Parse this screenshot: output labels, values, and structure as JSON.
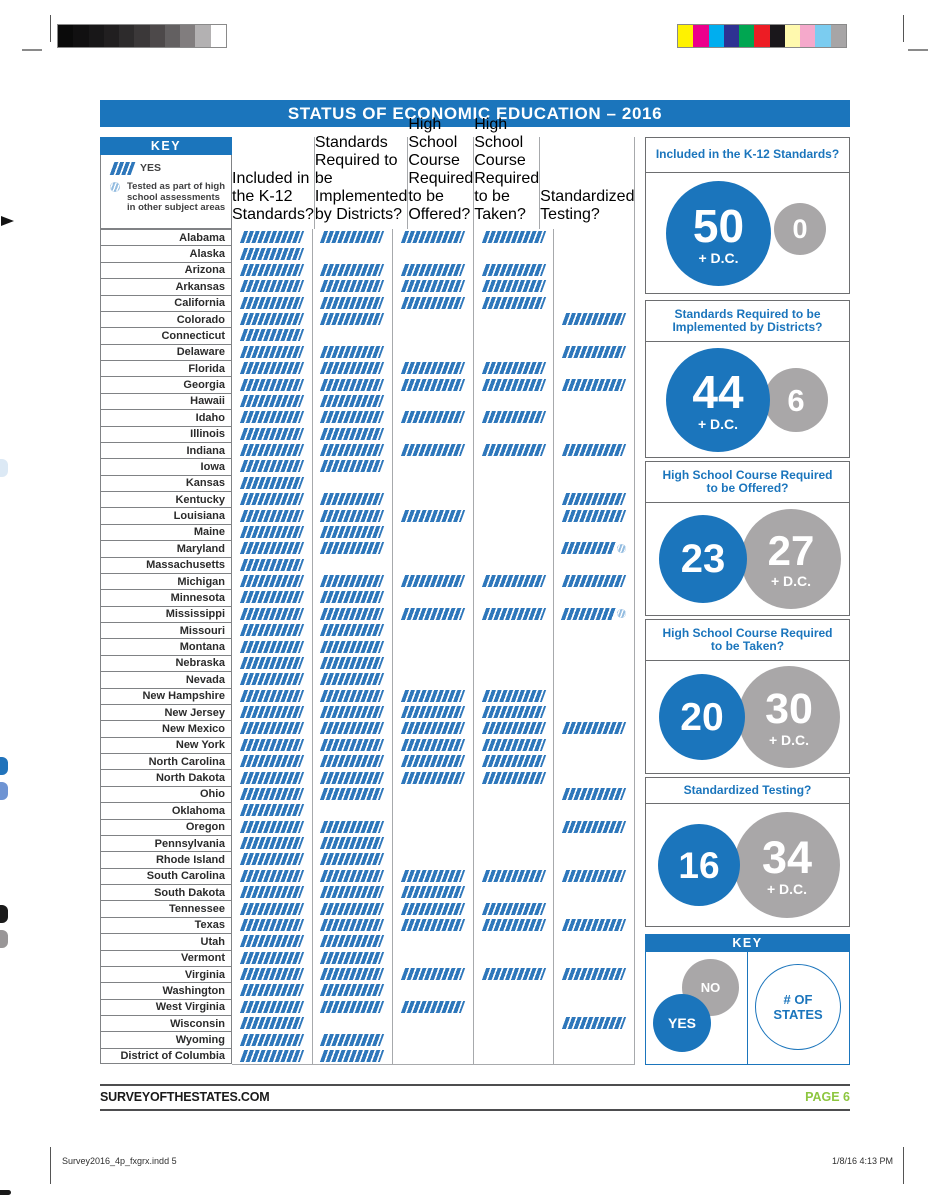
{
  "title": "STATUS OF ECONOMIC EDUCATION – 2016",
  "key": {
    "header": "KEY",
    "yes_label": "YES",
    "tested_note": "Tested as part of high\nschool assessments\nin other subject areas"
  },
  "columns": [
    {
      "id": "k12-standards",
      "label": "Included\nin the K-12\nStandards?"
    },
    {
      "id": "standards-implemented",
      "label": "Standards\nRequired to be\nImplemented\nby Districts?"
    },
    {
      "id": "course-offered",
      "label": "High School\nCourse\nRequired to\nbe Offered?"
    },
    {
      "id": "course-taken",
      "label": "High School\nCourse\nRequired to\nbe Taken?"
    },
    {
      "id": "standardized-testing",
      "label": "Standardized\nTesting?"
    }
  ],
  "table": {
    "rows": [
      {
        "state": "Alabama",
        "marks": [
          1,
          1,
          1,
          1,
          0
        ],
        "note": false
      },
      {
        "state": "Alaska",
        "marks": [
          1,
          0,
          0,
          0,
          0
        ],
        "note": false
      },
      {
        "state": "Arizona",
        "marks": [
          1,
          1,
          1,
          1,
          0
        ],
        "note": false
      },
      {
        "state": "Arkansas",
        "marks": [
          1,
          1,
          1,
          1,
          0
        ],
        "note": false
      },
      {
        "state": "California",
        "marks": [
          1,
          1,
          1,
          1,
          0
        ],
        "note": false
      },
      {
        "state": "Colorado",
        "marks": [
          1,
          1,
          0,
          0,
          1
        ],
        "note": false
      },
      {
        "state": "Connecticut",
        "marks": [
          1,
          0,
          0,
          0,
          0
        ],
        "note": false
      },
      {
        "state": "Delaware",
        "marks": [
          1,
          1,
          0,
          0,
          1
        ],
        "note": false
      },
      {
        "state": "Florida",
        "marks": [
          1,
          1,
          1,
          1,
          0
        ],
        "note": false
      },
      {
        "state": "Georgia",
        "marks": [
          1,
          1,
          1,
          1,
          1
        ],
        "note": false
      },
      {
        "state": "Hawaii",
        "marks": [
          1,
          1,
          0,
          0,
          0
        ],
        "note": false
      },
      {
        "state": "Idaho",
        "marks": [
          1,
          1,
          1,
          1,
          0
        ],
        "note": false
      },
      {
        "state": "Illinois",
        "marks": [
          1,
          1,
          0,
          0,
          0
        ],
        "note": false
      },
      {
        "state": "Indiana",
        "marks": [
          1,
          1,
          1,
          1,
          1
        ],
        "note": false
      },
      {
        "state": "Iowa",
        "marks": [
          1,
          1,
          0,
          0,
          0
        ],
        "note": false
      },
      {
        "state": "Kansas",
        "marks": [
          1,
          0,
          0,
          0,
          0
        ],
        "note": false
      },
      {
        "state": "Kentucky",
        "marks": [
          1,
          1,
          0,
          0,
          1
        ],
        "note": false
      },
      {
        "state": "Louisiana",
        "marks": [
          1,
          1,
          1,
          0,
          1
        ],
        "note": false
      },
      {
        "state": "Maine",
        "marks": [
          1,
          1,
          0,
          0,
          0
        ],
        "note": false
      },
      {
        "state": "Maryland",
        "marks": [
          1,
          1,
          0,
          0,
          1
        ],
        "note": true
      },
      {
        "state": "Massachusetts",
        "marks": [
          1,
          0,
          0,
          0,
          0
        ],
        "note": false
      },
      {
        "state": "Michigan",
        "marks": [
          1,
          1,
          1,
          1,
          1
        ],
        "note": false
      },
      {
        "state": "Minnesota",
        "marks": [
          1,
          1,
          0,
          0,
          0
        ],
        "note": false
      },
      {
        "state": "Mississippi",
        "marks": [
          1,
          1,
          1,
          1,
          1
        ],
        "note": true
      },
      {
        "state": "Missouri",
        "marks": [
          1,
          1,
          0,
          0,
          0
        ],
        "note": false
      },
      {
        "state": "Montana",
        "marks": [
          1,
          1,
          0,
          0,
          0
        ],
        "note": false
      },
      {
        "state": "Nebraska",
        "marks": [
          1,
          1,
          0,
          0,
          0
        ],
        "note": false
      },
      {
        "state": "Nevada",
        "marks": [
          1,
          1,
          0,
          0,
          0
        ],
        "note": false
      },
      {
        "state": "New Hampshire",
        "marks": [
          1,
          1,
          1,
          1,
          0
        ],
        "note": false
      },
      {
        "state": "New Jersey",
        "marks": [
          1,
          1,
          1,
          1,
          0
        ],
        "note": false
      },
      {
        "state": "New Mexico",
        "marks": [
          1,
          1,
          1,
          1,
          1
        ],
        "note": false
      },
      {
        "state": "New York",
        "marks": [
          1,
          1,
          1,
          1,
          0
        ],
        "note": false
      },
      {
        "state": "North Carolina",
        "marks": [
          1,
          1,
          1,
          1,
          0
        ],
        "note": false
      },
      {
        "state": "North Dakota",
        "marks": [
          1,
          1,
          1,
          1,
          0
        ],
        "note": false
      },
      {
        "state": "Ohio",
        "marks": [
          1,
          1,
          0,
          0,
          1
        ],
        "note": false
      },
      {
        "state": "Oklahoma",
        "marks": [
          1,
          0,
          0,
          0,
          0
        ],
        "note": false
      },
      {
        "state": "Oregon",
        "marks": [
          1,
          1,
          0,
          0,
          1
        ],
        "note": false
      },
      {
        "state": "Pennsylvania",
        "marks": [
          1,
          1,
          0,
          0,
          0
        ],
        "note": false
      },
      {
        "state": "Rhode Island",
        "marks": [
          1,
          1,
          0,
          0,
          0
        ],
        "note": false
      },
      {
        "state": "South Carolina",
        "marks": [
          1,
          1,
          1,
          1,
          1
        ],
        "note": false
      },
      {
        "state": "South Dakota",
        "marks": [
          1,
          1,
          1,
          0,
          0
        ],
        "note": false
      },
      {
        "state": "Tennessee",
        "marks": [
          1,
          1,
          1,
          1,
          0
        ],
        "note": false
      },
      {
        "state": "Texas",
        "marks": [
          1,
          1,
          1,
          1,
          1
        ],
        "note": false
      },
      {
        "state": "Utah",
        "marks": [
          1,
          1,
          0,
          0,
          0
        ],
        "note": false
      },
      {
        "state": "Vermont",
        "marks": [
          1,
          1,
          0,
          0,
          0
        ],
        "note": false
      },
      {
        "state": "Virginia",
        "marks": [
          1,
          1,
          1,
          1,
          1
        ],
        "note": false
      },
      {
        "state": "Washington",
        "marks": [
          1,
          1,
          0,
          0,
          0
        ],
        "note": false
      },
      {
        "state": "West Virginia",
        "marks": [
          1,
          1,
          1,
          0,
          0
        ],
        "note": false
      },
      {
        "state": "Wisconsin",
        "marks": [
          1,
          0,
          0,
          0,
          1
        ],
        "note": false
      },
      {
        "state": "Wyoming",
        "marks": [
          1,
          1,
          0,
          0,
          0
        ],
        "note": false
      },
      {
        "state": "District of Columbia",
        "marks": [
          1,
          1,
          0,
          0,
          0
        ],
        "note": false
      }
    ]
  },
  "stats": [
    {
      "title": "Included in the K-12 Standards?",
      "yes_value": "50",
      "yes_sub": "+ D.C.",
      "no_value": "0",
      "no_sub": ""
    },
    {
      "title": "Standards Required to be\nImplemented by Districts?",
      "yes_value": "44",
      "yes_sub": "+ D.C.",
      "no_value": "6",
      "no_sub": ""
    },
    {
      "title": "High School Course Required\nto be Offered?",
      "yes_value": "23",
      "yes_sub": "",
      "no_value": "27",
      "no_sub": "+ D.C."
    },
    {
      "title": "High School Course Required\nto be Taken?",
      "yes_value": "20",
      "yes_sub": "",
      "no_value": "30",
      "no_sub": "+ D.C."
    },
    {
      "title": "Standardized Testing?",
      "yes_value": "16",
      "yes_sub": "",
      "no_value": "34",
      "no_sub": "+ D.C."
    }
  ],
  "legend": {
    "header": "KEY",
    "no_label": "NO",
    "yes_label": "YES",
    "count_label": "# OF\nSTATES"
  },
  "footer": {
    "site": "SURVEYOFTHESTATES.COM",
    "page": "PAGE 6"
  },
  "print_footer": {
    "left": "Survey2016_4p_fxgrx.indd   5",
    "right": "1/8/16   4:13 PM"
  },
  "print_marks": {
    "grayscale_bar": [
      "#0A0A0A",
      "#111011",
      "#181718",
      "#211F20",
      "#2D2B2C",
      "#3B3839",
      "#4D494A",
      "#636061",
      "#817D7E",
      "#B3B1B2",
      "#FFFFFF"
    ],
    "color_bar": [
      "#FFF200",
      "#EC008C",
      "#00AEEF",
      "#2E3192",
      "#00A651",
      "#ED1C24",
      "#1A171B",
      "#FFF9AE",
      "#F5A9CB",
      "#7BCCF0",
      "#A7A5A6"
    ]
  },
  "colors": {
    "blue": "#1B75BC",
    "gray": "#A9A7A8",
    "green": "#8DC63F"
  }
}
